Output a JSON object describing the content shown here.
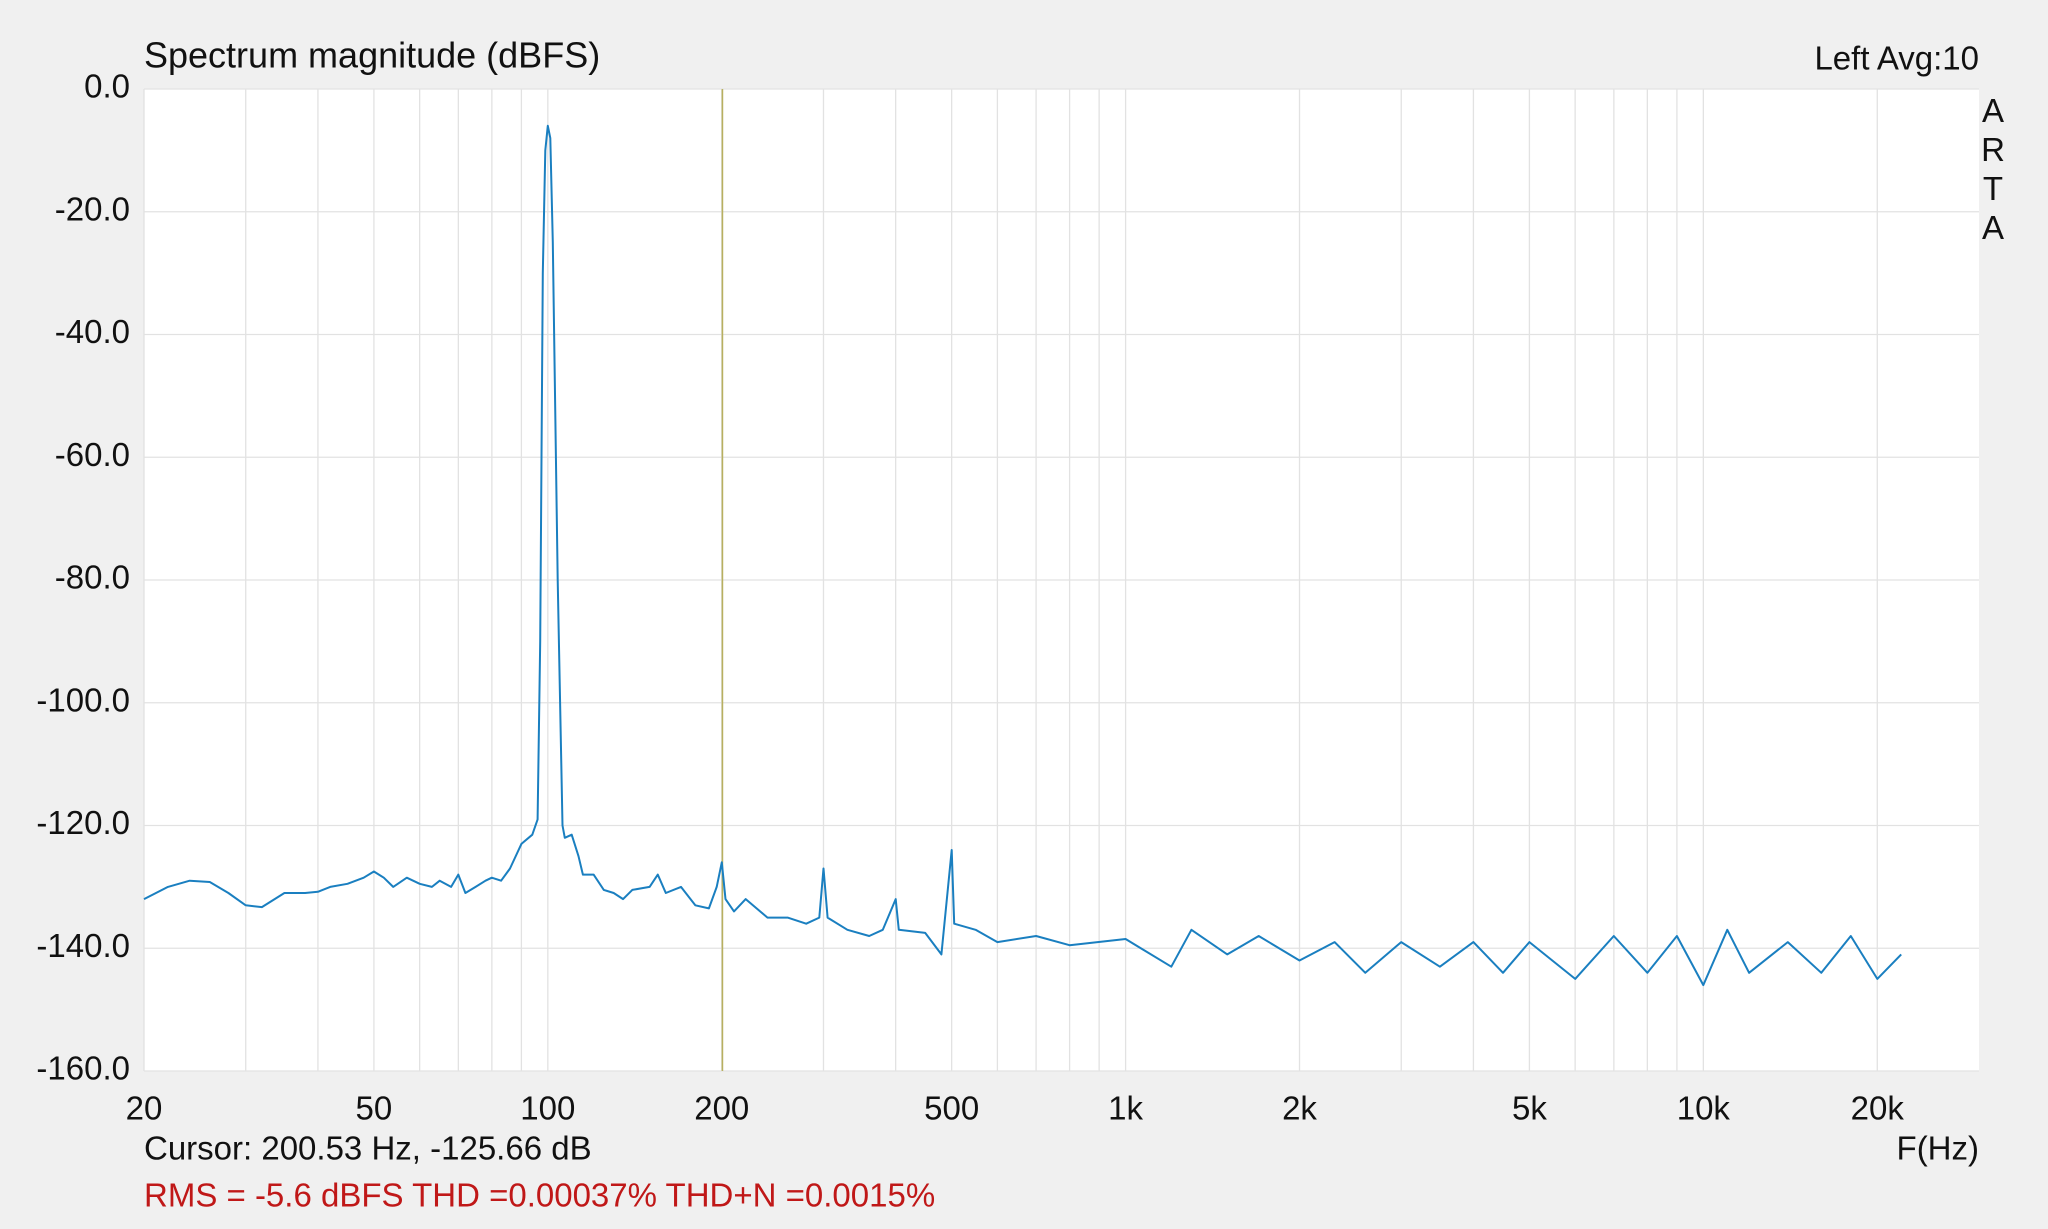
{
  "chart_data": {
    "type": "line",
    "title": "Spectrum magnitude (dBFS)",
    "channel_info": "Left  Avg:10",
    "brand": "ARTA",
    "x_label": "F(Hz)",
    "cursor": {
      "x": 200.53,
      "label": "Cursor: 200.53 Hz, -125.66 dB",
      "color": "#b8b060"
    },
    "summary": "RMS =   -5.6 dBFS THD =0.00037% THD+N =0.0015%",
    "x_scale": "log",
    "grid": true,
    "xlim": [
      20,
      30000
    ],
    "ylim": [
      -160,
      0
    ],
    "xticks": [
      20,
      50,
      100,
      200,
      500,
      {
        "value": 1000,
        "label": "1k"
      },
      {
        "value": 2000,
        "label": "2k"
      },
      {
        "value": 5000,
        "label": "5k"
      },
      {
        "value": 10000,
        "label": "10k"
      },
      {
        "value": 20000,
        "label": "20k"
      }
    ],
    "xminor": [
      30,
      40,
      60,
      70,
      80,
      90,
      300,
      400,
      600,
      700,
      800,
      900,
      3000,
      4000,
      6000,
      7000,
      8000,
      9000
    ],
    "yticks": [
      {
        "value": 0,
        "label": "0.0"
      },
      {
        "value": -20,
        "label": "-20.0"
      },
      {
        "value": -40,
        "label": "-40.0"
      },
      {
        "value": -60,
        "label": "-60.0"
      },
      {
        "value": -80,
        "label": "-80.0"
      },
      {
        "value": -100,
        "label": "-100.0"
      },
      {
        "value": -120,
        "label": "-120.0"
      },
      {
        "value": -140,
        "label": "-140.0"
      },
      {
        "value": -160,
        "label": "-160.0"
      }
    ],
    "x": [
      20,
      22,
      24,
      26,
      28,
      30,
      32,
      35,
      38,
      40,
      42,
      45,
      48,
      50,
      52,
      54,
      57,
      60,
      63,
      65,
      68,
      70,
      72,
      75,
      78,
      80,
      83,
      86,
      90,
      94,
      96,
      97,
      98,
      99,
      100,
      101,
      102,
      104,
      106,
      107,
      110,
      113,
      115,
      120,
      125,
      130,
      135,
      140,
      150,
      155,
      160,
      170,
      180,
      190,
      196,
      200,
      203,
      210,
      220,
      240,
      260,
      280,
      295,
      300,
      305,
      330,
      360,
      380,
      400,
      405,
      450,
      480,
      500,
      505,
      550,
      600,
      700,
      800,
      1000,
      1200,
      1300,
      1500,
      1700,
      2000,
      2300,
      2600,
      3000,
      3500,
      4000,
      4500,
      5000,
      6000,
      7000,
      8000,
      9000,
      10000,
      11000,
      12000,
      14000,
      16000,
      18000,
      20000,
      22000
    ],
    "series": [
      {
        "name": "Left",
        "color": "#1a7fc0",
        "values": [
          -132,
          -130,
          -129,
          -129.2,
          -131,
          -133,
          -133.3,
          -131,
          -131,
          -130.8,
          -130,
          -129.5,
          -128.5,
          -127.5,
          -128.5,
          -130,
          -128.5,
          -129.5,
          -130,
          -129,
          -130,
          -128,
          -131,
          -130,
          -129,
          -128.5,
          -129,
          -127,
          -123,
          -121.5,
          -119,
          -90,
          -30,
          -10,
          -6,
          -8,
          -25,
          -80,
          -120,
          -122,
          -121.5,
          -125,
          -128,
          -128,
          -130.5,
          -131,
          -132,
          -130.5,
          -130,
          -128,
          -131,
          -130,
          -133,
          -133.5,
          -130,
          -126,
          -132,
          -134,
          -132,
          -135,
          -135,
          -136,
          -135,
          -127,
          -135,
          -137,
          -138,
          -137,
          -132,
          -137,
          -137.5,
          -141,
          -124,
          -136,
          -137,
          -139,
          -138,
          -139.5,
          -138.5,
          -143,
          -137,
          -141,
          -138,
          -142,
          -139,
          -144,
          -139,
          -143,
          -139,
          -144,
          -139,
          -145,
          -138,
          -144,
          -138,
          -146,
          -137,
          -144,
          -139,
          -144,
          -138,
          -145,
          -141
        ]
      }
    ]
  }
}
